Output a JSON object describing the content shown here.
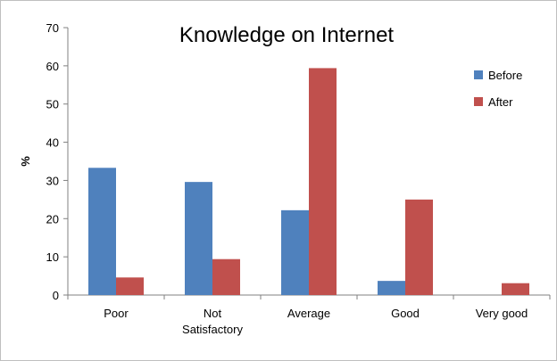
{
  "chart_data": {
    "type": "bar",
    "title": "Knowledge on Internet",
    "xlabel": "",
    "ylabel": "%",
    "ylim": [
      0,
      70
    ],
    "yticks": [
      0,
      10,
      20,
      30,
      40,
      50,
      60,
      70
    ],
    "grid": false,
    "legend_position": "right",
    "categories": [
      [
        "Poor"
      ],
      [
        "Not",
        "Satisfactory"
      ],
      [
        "Average"
      ],
      [
        "Good"
      ],
      [
        "Very good"
      ]
    ],
    "series": [
      {
        "name": "Before",
        "color": "#4f81bd",
        "values": [
          33.3,
          29.6,
          22.2,
          3.7,
          0
        ]
      },
      {
        "name": "After",
        "color": "#c0504d",
        "values": [
          4.6,
          9.4,
          59.4,
          25,
          3.1
        ]
      }
    ]
  }
}
